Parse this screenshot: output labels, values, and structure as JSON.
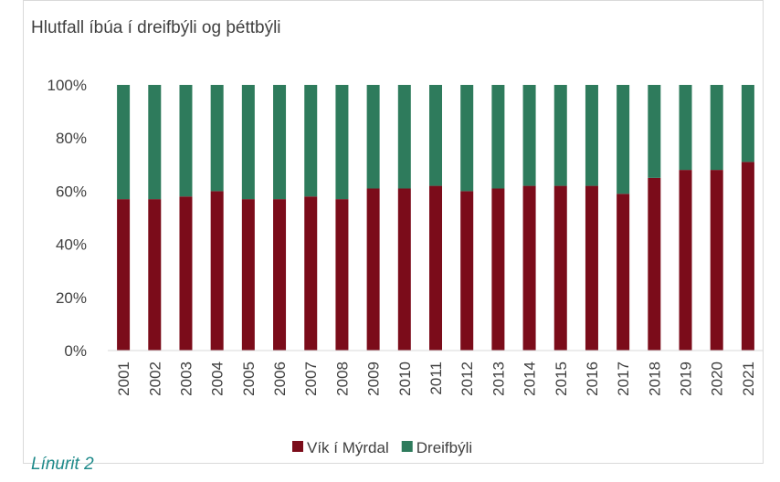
{
  "chart_data": {
    "type": "stacked_bar",
    "title": "Hlutfall íbúa í dreifbýli og þéttbýli",
    "categories": [
      "2001",
      "2002",
      "2003",
      "2004",
      "2005",
      "2006",
      "2007",
      "2008",
      "2009",
      "2010",
      "2011",
      "2012",
      "2013",
      "2014",
      "2015",
      "2016",
      "2017",
      "2018",
      "2019",
      "2020",
      "2021"
    ],
    "series": [
      {
        "name": "Vík í Mýrdal",
        "color": "#7b0c1a",
        "values": [
          57,
          57,
          58,
          60,
          57,
          57,
          58,
          57,
          61,
          61,
          62,
          60,
          61,
          62,
          62,
          62,
          59,
          65,
          68,
          68,
          71
        ]
      },
      {
        "name": "Dreifbýli",
        "color": "#2e7b5c",
        "values": [
          43,
          43,
          42,
          40,
          43,
          43,
          42,
          43,
          39,
          39,
          38,
          40,
          39,
          38,
          38,
          38,
          41,
          35,
          32,
          32,
          29
        ]
      }
    ],
    "ylim": [
      0,
      100
    ],
    "yticks": [
      {
        "value": 0,
        "label": "0%"
      },
      {
        "value": 20,
        "label": "20%"
      },
      {
        "value": 40,
        "label": "40%"
      },
      {
        "value": 60,
        "label": "60%"
      },
      {
        "value": 80,
        "label": "80%"
      },
      {
        "value": 100,
        "label": "100%"
      }
    ],
    "legend": "bottom"
  },
  "caption": "Línurit 2"
}
